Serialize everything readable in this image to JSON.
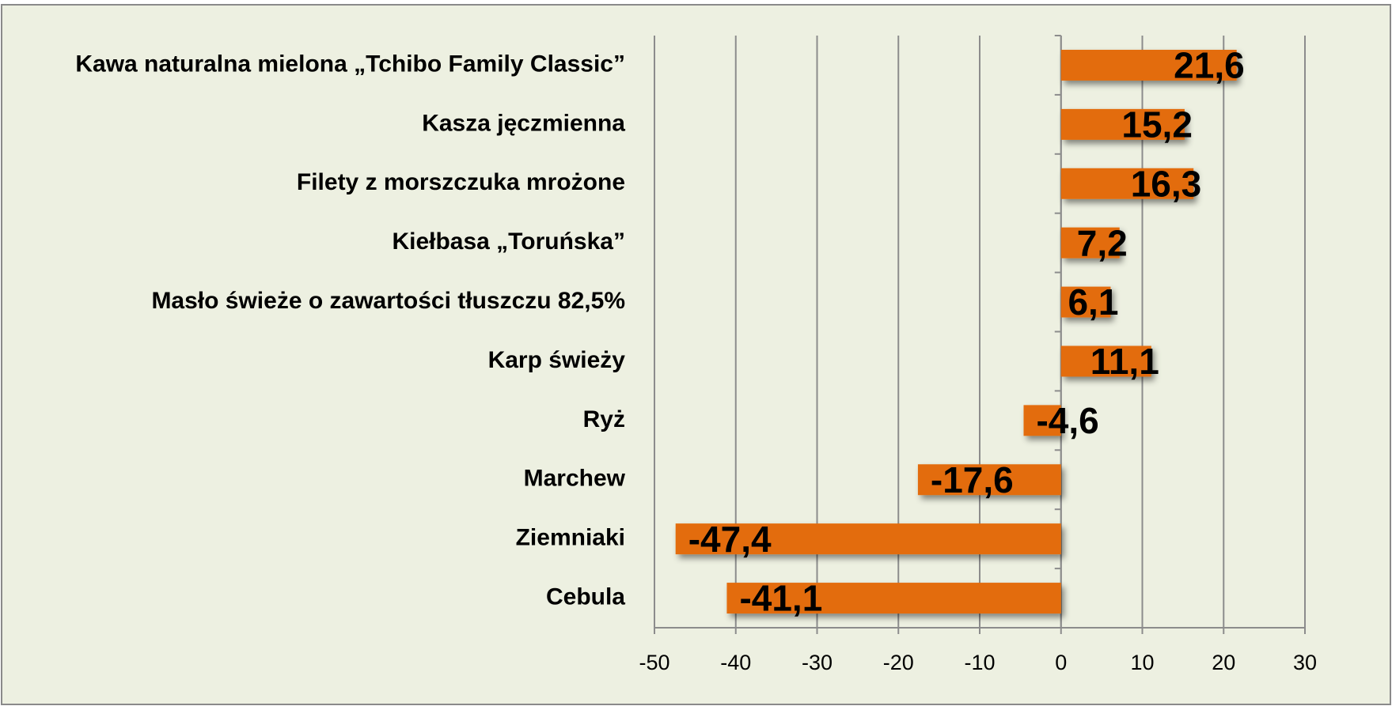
{
  "chart_data": {
    "type": "bar",
    "orientation": "horizontal",
    "categories": [
      "Kawa naturalna mielona „Tchibo Family Classic”",
      "Kasza jęczmienna",
      "Filety z morszczuka mrożone",
      "Kiełbasa „Toruńska”",
      "Masło świeże o zawartości tłuszczu 82,5%",
      "Karp świeży",
      "Ryż",
      "Marchew",
      "Ziemniaki",
      "Cebula"
    ],
    "values": [
      21.6,
      15.2,
      16.3,
      7.2,
      6.1,
      11.1,
      -4.6,
      -17.6,
      -47.4,
      -41.1
    ],
    "value_labels": [
      "21,6",
      "15,2",
      "16,3",
      "7,2",
      "6,1",
      "11,1",
      "-4,6",
      "-17,6",
      "-47,4",
      "-41,1"
    ],
    "color": "#e36c0a",
    "xlim": [
      -50,
      30
    ],
    "xticks": [
      -50,
      -40,
      -30,
      -20,
      -10,
      0,
      10,
      20,
      30
    ],
    "grid": true
  }
}
